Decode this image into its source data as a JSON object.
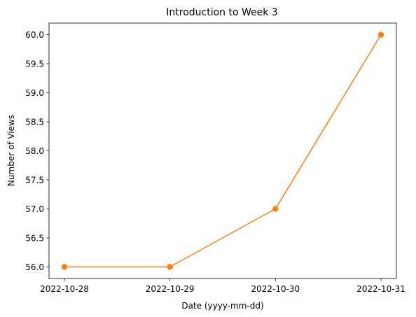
{
  "chart_data": {
    "type": "line",
    "title": "Introduction to Week 3",
    "xlabel": "Date (yyyy-mm-dd)",
    "ylabel": "Number of Views",
    "categories": [
      "2022-10-28",
      "2022-10-29",
      "2022-10-30",
      "2022-10-31"
    ],
    "series": [
      {
        "values": [
          56,
          56,
          57,
          60
        ],
        "color": "#ff7f0e",
        "marker": "circle"
      }
    ],
    "ylim": [
      55.8,
      60.2
    ],
    "yticks": [
      56.0,
      56.5,
      57.0,
      57.5,
      58.0,
      58.5,
      59.0,
      59.5,
      60.0
    ],
    "ytick_labels": [
      "56.0",
      "56.5",
      "57.0",
      "57.5",
      "58.0",
      "58.5",
      "59.0",
      "59.5",
      "60.0"
    ],
    "grid": false
  }
}
